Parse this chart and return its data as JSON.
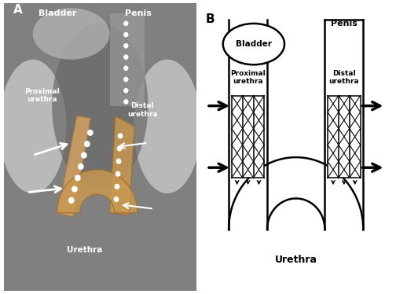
{
  "panel_A_label": "A",
  "panel_B_label": "B",
  "bladder_label_A": "Bladder",
  "penis_label_A": "Penis",
  "proximal_urethra_label": "Proximal\nurethra",
  "distal_urethra_label": "Distal\nurethra",
  "urethra_label": "Urethra",
  "bladder_label_B": "Bladder",
  "penis_label_B": "Penis",
  "background_color": "#ffffff",
  "line_color": "#000000"
}
